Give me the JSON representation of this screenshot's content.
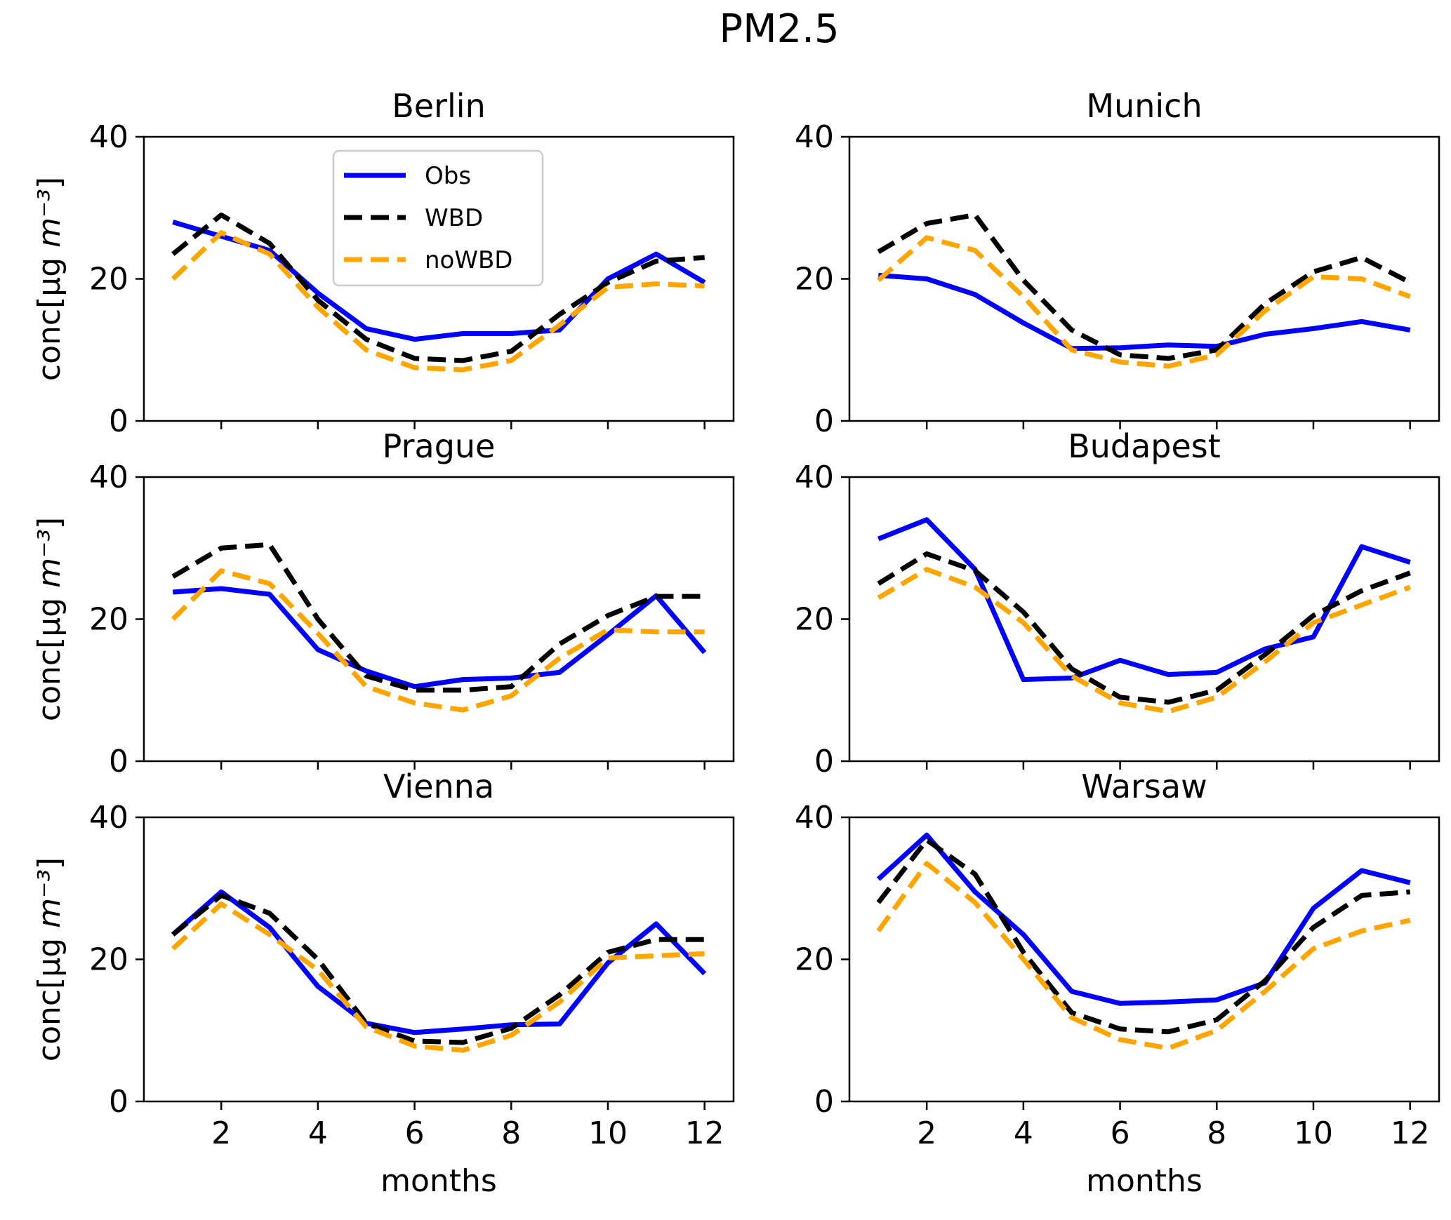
{
  "figure": {
    "title": "PM2.5"
  },
  "legend": {
    "entries": [
      {
        "label": "Obs",
        "color": "#0000ff",
        "style": "solid"
      },
      {
        "label": "WBD",
        "color": "#000000",
        "style": "dashed"
      },
      {
        "label": "noWBD",
        "color": "#ffa500",
        "style": "dashed"
      }
    ],
    "placement": "upper-center of first panel"
  },
  "chart_data": [
    {
      "type": "line",
      "title": "Berlin",
      "xlabel": "",
      "ylabel": "conc[μg m⁻³]",
      "xlim": [
        0.4,
        12.6
      ],
      "ylim": [
        0,
        40
      ],
      "xticks": [
        2,
        4,
        6,
        8,
        10,
        12
      ],
      "yticks": [
        0,
        20,
        40
      ],
      "grid": false,
      "x": [
        1,
        2,
        3,
        4,
        5,
        6,
        7,
        8,
        9,
        10,
        11,
        12
      ],
      "series": [
        {
          "name": "Obs",
          "values": [
            28,
            26,
            24,
            18,
            13,
            11.5,
            12.3,
            12.3,
            12.8,
            20,
            23.5,
            19.5
          ]
        },
        {
          "name": "WBD",
          "values": [
            23.5,
            29,
            25,
            17,
            11.5,
            8.8,
            8.5,
            9.8,
            15,
            19.5,
            22.5,
            23
          ]
        },
        {
          "name": "noWBD",
          "values": [
            20,
            26.5,
            23.5,
            16,
            10,
            7.5,
            7.2,
            8.5,
            13.5,
            18.8,
            19.3,
            19
          ]
        }
      ]
    },
    {
      "type": "line",
      "title": "Munich",
      "xlabel": "",
      "ylabel": "",
      "xlim": [
        0.4,
        12.6
      ],
      "ylim": [
        0,
        40
      ],
      "xticks": [
        2,
        4,
        6,
        8,
        10,
        12
      ],
      "yticks": [
        0,
        20,
        40
      ],
      "grid": false,
      "x": [
        1,
        2,
        3,
        4,
        5,
        6,
        7,
        8,
        9,
        10,
        11,
        12
      ],
      "series": [
        {
          "name": "Obs",
          "values": [
            20.5,
            20,
            17.8,
            13.8,
            10.2,
            10.3,
            10.7,
            10.5,
            12.2,
            13,
            14,
            12.8
          ]
        },
        {
          "name": "WBD",
          "values": [
            23.8,
            27.8,
            29,
            19.8,
            12.8,
            9.3,
            8.8,
            10,
            16.5,
            21,
            23,
            19.5
          ]
        },
        {
          "name": "noWBD",
          "values": [
            19.8,
            25.8,
            24,
            17.5,
            10,
            8.3,
            7.7,
            9.3,
            15.5,
            20.3,
            20,
            17.5
          ]
        }
      ]
    },
    {
      "type": "line",
      "title": "Prague",
      "xlabel": "",
      "ylabel": "conc[μg m⁻³]",
      "xlim": [
        0.4,
        12.6
      ],
      "ylim": [
        0,
        40
      ],
      "xticks": [
        2,
        4,
        6,
        8,
        10,
        12
      ],
      "yticks": [
        0,
        20,
        40
      ],
      "grid": false,
      "x": [
        1,
        2,
        3,
        4,
        5,
        6,
        7,
        8,
        9,
        10,
        11,
        12
      ],
      "series": [
        {
          "name": "Obs",
          "values": [
            23.8,
            24.3,
            23.5,
            15.7,
            12.7,
            10.5,
            11.5,
            11.7,
            12.5,
            17.8,
            23.3,
            15.3
          ]
        },
        {
          "name": "WBD",
          "values": [
            26,
            30,
            30.5,
            20,
            12,
            10,
            10,
            10.5,
            16.5,
            20.5,
            23.2,
            23.2
          ]
        },
        {
          "name": "noWBD",
          "values": [
            20,
            26.8,
            25,
            18,
            10.5,
            8.2,
            7.2,
            9.2,
            14.5,
            18.5,
            18.2,
            18.2
          ]
        }
      ]
    },
    {
      "type": "line",
      "title": "Budapest",
      "xlabel": "",
      "ylabel": "",
      "xlim": [
        0.4,
        12.6
      ],
      "ylim": [
        0,
        40
      ],
      "xticks": [
        2,
        4,
        6,
        8,
        10,
        12
      ],
      "yticks": [
        0,
        20,
        40
      ],
      "grid": false,
      "x": [
        1,
        2,
        3,
        4,
        5,
        6,
        7,
        8,
        9,
        10,
        11,
        12
      ],
      "series": [
        {
          "name": "Obs",
          "values": [
            31.3,
            34,
            27,
            11.5,
            11.7,
            14.2,
            12.2,
            12.5,
            15.8,
            17.5,
            30.2,
            28
          ]
        },
        {
          "name": "WBD",
          "values": [
            25,
            29.2,
            26.8,
            21,
            13,
            9,
            8.3,
            10,
            15,
            20.5,
            24,
            26.5
          ]
        },
        {
          "name": "noWBD",
          "values": [
            23,
            27,
            24.5,
            19.5,
            12,
            8.2,
            7,
            9,
            14,
            19.5,
            22,
            24.5
          ]
        }
      ]
    },
    {
      "type": "line",
      "title": "Vienna",
      "xlabel": "months",
      "ylabel": "conc[μg m⁻³]",
      "xlim": [
        0.4,
        12.6
      ],
      "ylim": [
        0,
        40
      ],
      "xticks": [
        2,
        4,
        6,
        8,
        10,
        12
      ],
      "yticks": [
        0,
        20,
        40
      ],
      "grid": false,
      "x": [
        1,
        2,
        3,
        4,
        5,
        6,
        7,
        8,
        9,
        10,
        11,
        12
      ],
      "series": [
        {
          "name": "Obs",
          "values": [
            23.5,
            29.5,
            24.5,
            16.2,
            11,
            9.7,
            10.2,
            10.8,
            10.9,
            19.5,
            25,
            18
          ]
        },
        {
          "name": "WBD",
          "values": [
            23.5,
            29,
            26.5,
            20,
            11,
            8.5,
            8.3,
            10.3,
            15,
            21,
            22.8,
            22.8
          ]
        },
        {
          "name": "noWBD",
          "values": [
            21.5,
            27.8,
            23.5,
            18.5,
            10.5,
            7.8,
            7.2,
            9.3,
            14,
            20.2,
            20.5,
            20.8
          ]
        }
      ]
    },
    {
      "type": "line",
      "title": "Warsaw",
      "xlabel": "months",
      "ylabel": "",
      "xlim": [
        0.4,
        12.6
      ],
      "ylim": [
        0,
        40
      ],
      "xticks": [
        2,
        4,
        6,
        8,
        10,
        12
      ],
      "yticks": [
        0,
        20,
        40
      ],
      "grid": false,
      "x": [
        1,
        2,
        3,
        4,
        5,
        6,
        7,
        8,
        9,
        10,
        11,
        12
      ],
      "series": [
        {
          "name": "Obs",
          "values": [
            31.3,
            37.5,
            29.5,
            23.5,
            15.5,
            13.8,
            14,
            14.3,
            16.7,
            27.2,
            32.5,
            30.8
          ]
        },
        {
          "name": "WBD",
          "values": [
            28,
            36.8,
            32,
            21,
            12.5,
            10.2,
            9.8,
            11.5,
            17,
            24.5,
            29,
            29.5
          ]
        },
        {
          "name": "noWBD",
          "values": [
            24,
            33.5,
            28,
            20,
            11.8,
            8.7,
            7.5,
            10,
            15.5,
            21.5,
            24,
            25.5
          ]
        }
      ]
    }
  ]
}
